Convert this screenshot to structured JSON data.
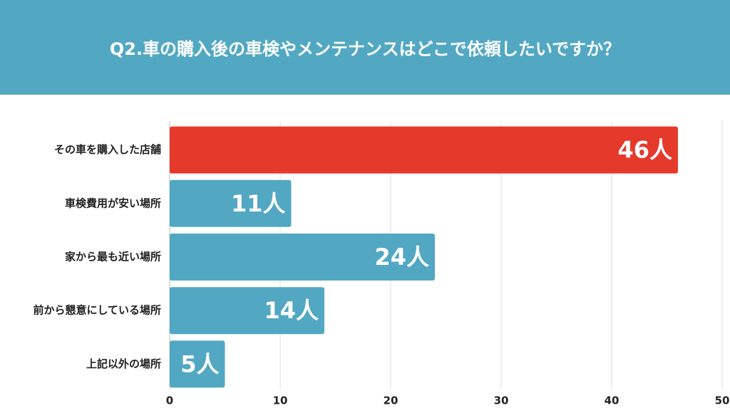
{
  "chart_data": {
    "type": "bar",
    "orientation": "horizontal",
    "title": "Q2.車の購入後の車検やメンテナンスはどこで依頼したいですか？",
    "categories": [
      "その車を購入した店舗",
      "車検費用が安い場所",
      "家から最も近い場所",
      "前から懇意にしている場所",
      "上記以外の場所"
    ],
    "values": [
      46,
      11,
      24,
      14,
      5
    ],
    "value_labels": [
      "46人",
      "11人",
      "24人",
      "14人",
      "5人"
    ],
    "colors": [
      "#e5392c",
      "#52a8c3",
      "#52a8c3",
      "#52a8c3",
      "#52a8c3"
    ],
    "header_color": "#52a8c3",
    "xlim": [
      0,
      50
    ],
    "xticks": [
      0,
      10,
      20,
      30,
      40,
      50
    ],
    "grid": true
  }
}
